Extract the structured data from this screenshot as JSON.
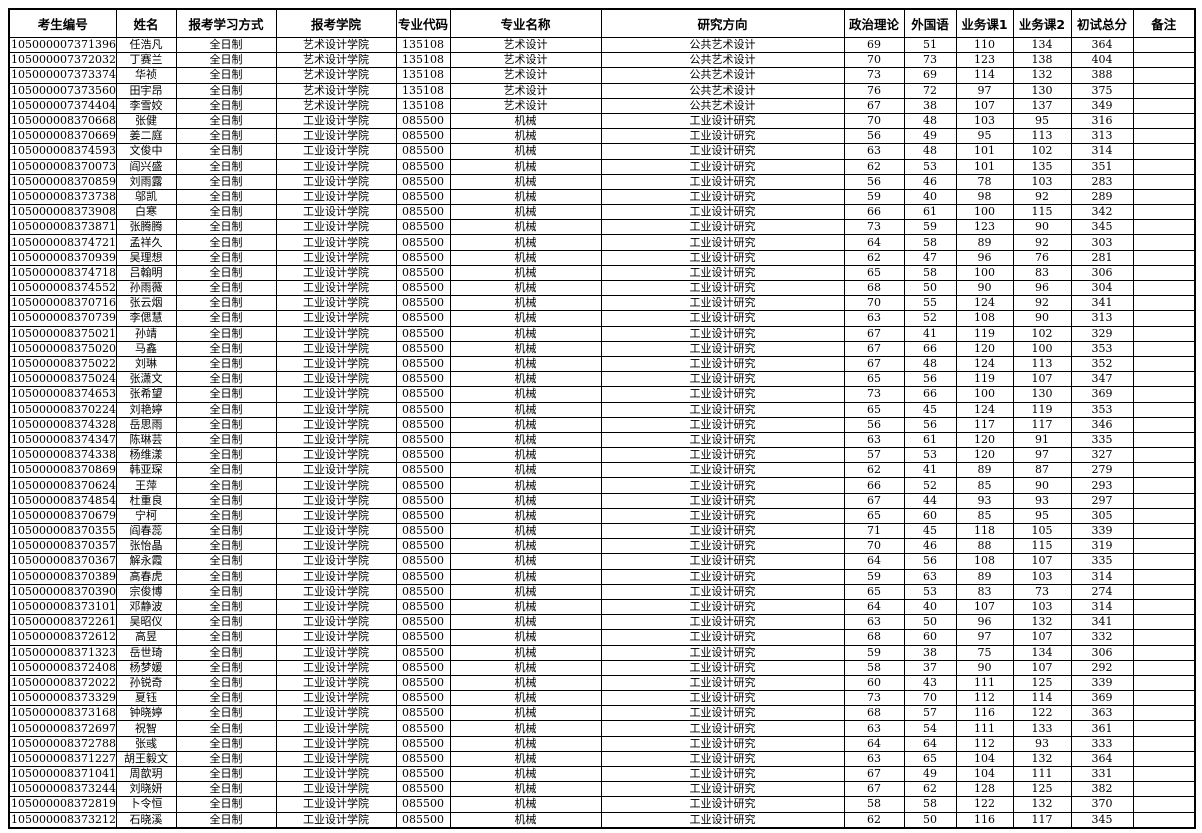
{
  "colors": {
    "border": "#000000",
    "text": "#000000",
    "background": "#ffffff"
  },
  "table": {
    "headers": [
      "考生编号",
      "姓名",
      "报考学习方式",
      "报考学院",
      "专业代码",
      "专业名称",
      "研究方向",
      "政治理论",
      "外国语",
      "业务课1",
      "业务课2",
      "初试总分",
      "备注"
    ],
    "rows": [
      [
        "105000007371396",
        "任浩凡",
        "全日制",
        "艺术设计学院",
        "135108",
        "艺术设计",
        "公共艺术设计",
        69,
        51,
        110,
        134,
        364,
        ""
      ],
      [
        "105000007372032",
        "丁赛兰",
        "全日制",
        "艺术设计学院",
        "135108",
        "艺术设计",
        "公共艺术设计",
        70,
        73,
        123,
        138,
        404,
        ""
      ],
      [
        "105000007373374",
        "华祯",
        "全日制",
        "艺术设计学院",
        "135108",
        "艺术设计",
        "公共艺术设计",
        73,
        69,
        114,
        132,
        388,
        ""
      ],
      [
        "105000007373560",
        "田宇昂",
        "全日制",
        "艺术设计学院",
        "135108",
        "艺术设计",
        "公共艺术设计",
        76,
        72,
        97,
        130,
        375,
        ""
      ],
      [
        "105000007374404",
        "李雪姣",
        "全日制",
        "艺术设计学院",
        "135108",
        "艺术设计",
        "公共艺术设计",
        67,
        38,
        107,
        137,
        349,
        ""
      ],
      [
        "105000008370668",
        "张健",
        "全日制",
        "工业设计学院",
        "085500",
        "机械",
        "工业设计研究",
        70,
        48,
        103,
        95,
        316,
        ""
      ],
      [
        "105000008370669",
        "姜二庭",
        "全日制",
        "工业设计学院",
        "085500",
        "机械",
        "工业设计研究",
        56,
        49,
        95,
        113,
        313,
        ""
      ],
      [
        "105000008374593",
        "文俊中",
        "全日制",
        "工业设计学院",
        "085500",
        "机械",
        "工业设计研究",
        63,
        48,
        101,
        102,
        314,
        ""
      ],
      [
        "105000008370073",
        "阎兴盛",
        "全日制",
        "工业设计学院",
        "085500",
        "机械",
        "工业设计研究",
        62,
        53,
        101,
        135,
        351,
        ""
      ],
      [
        "105000008370859",
        "刘雨露",
        "全日制",
        "工业设计学院",
        "085500",
        "机械",
        "工业设计研究",
        56,
        46,
        78,
        103,
        283,
        ""
      ],
      [
        "105000008373738",
        "邬凯",
        "全日制",
        "工业设计学院",
        "085500",
        "机械",
        "工业设计研究",
        59,
        40,
        98,
        92,
        289,
        ""
      ],
      [
        "105000008373908",
        "白寒",
        "全日制",
        "工业设计学院",
        "085500",
        "机械",
        "工业设计研究",
        66,
        61,
        100,
        115,
        342,
        ""
      ],
      [
        "105000008373871",
        "张腾腾",
        "全日制",
        "工业设计学院",
        "085500",
        "机械",
        "工业设计研究",
        73,
        59,
        123,
        90,
        345,
        ""
      ],
      [
        "105000008374721",
        "孟祥久",
        "全日制",
        "工业设计学院",
        "085500",
        "机械",
        "工业设计研究",
        64,
        58,
        89,
        92,
        303,
        ""
      ],
      [
        "105000008370939",
        "吴理想",
        "全日制",
        "工业设计学院",
        "085500",
        "机械",
        "工业设计研究",
        62,
        47,
        96,
        76,
        281,
        ""
      ],
      [
        "105000008374718",
        "吕翰明",
        "全日制",
        "工业设计学院",
        "085500",
        "机械",
        "工业设计研究",
        65,
        58,
        100,
        83,
        306,
        ""
      ],
      [
        "105000008374552",
        "孙雨薇",
        "全日制",
        "工业设计学院",
        "085500",
        "机械",
        "工业设计研究",
        68,
        50,
        90,
        96,
        304,
        ""
      ],
      [
        "105000008370716",
        "张云烟",
        "全日制",
        "工业设计学院",
        "085500",
        "机械",
        "工业设计研究",
        70,
        55,
        124,
        92,
        341,
        ""
      ],
      [
        "105000008370739",
        "李偲慧",
        "全日制",
        "工业设计学院",
        "085500",
        "机械",
        "工业设计研究",
        63,
        52,
        108,
        90,
        313,
        ""
      ],
      [
        "105000008375021",
        "孙靖",
        "全日制",
        "工业设计学院",
        "085500",
        "机械",
        "工业设计研究",
        67,
        41,
        119,
        102,
        329,
        ""
      ],
      [
        "105000008375020",
        "马鑫",
        "全日制",
        "工业设计学院",
        "085500",
        "机械",
        "工业设计研究",
        67,
        66,
        120,
        100,
        353,
        ""
      ],
      [
        "105000008375022",
        "刘琳",
        "全日制",
        "工业设计学院",
        "085500",
        "机械",
        "工业设计研究",
        67,
        48,
        124,
        113,
        352,
        ""
      ],
      [
        "105000008375024",
        "张潇文",
        "全日制",
        "工业设计学院",
        "085500",
        "机械",
        "工业设计研究",
        65,
        56,
        119,
        107,
        347,
        ""
      ],
      [
        "105000008374653",
        "张希望",
        "全日制",
        "工业设计学院",
        "085500",
        "机械",
        "工业设计研究",
        73,
        66,
        100,
        130,
        369,
        ""
      ],
      [
        "105000008370224",
        "刘艳婷",
        "全日制",
        "工业设计学院",
        "085500",
        "机械",
        "工业设计研究",
        65,
        45,
        124,
        119,
        353,
        ""
      ],
      [
        "105000008374328",
        "岳思雨",
        "全日制",
        "工业设计学院",
        "085500",
        "机械",
        "工业设计研究",
        56,
        56,
        117,
        117,
        346,
        ""
      ],
      [
        "105000008374347",
        "陈琳芸",
        "全日制",
        "工业设计学院",
        "085500",
        "机械",
        "工业设计研究",
        63,
        61,
        120,
        91,
        335,
        ""
      ],
      [
        "105000008374338",
        "杨维漾",
        "全日制",
        "工业设计学院",
        "085500",
        "机械",
        "工业设计研究",
        57,
        53,
        120,
        97,
        327,
        ""
      ],
      [
        "105000008370869",
        "韩亚琛",
        "全日制",
        "工业设计学院",
        "085500",
        "机械",
        "工业设计研究",
        62,
        41,
        89,
        87,
        279,
        ""
      ],
      [
        "105000008370624",
        "王萍",
        "全日制",
        "工业设计学院",
        "085500",
        "机械",
        "工业设计研究",
        66,
        52,
        85,
        90,
        293,
        ""
      ],
      [
        "105000008374854",
        "杜重良",
        "全日制",
        "工业设计学院",
        "085500",
        "机械",
        "工业设计研究",
        67,
        44,
        93,
        93,
        297,
        ""
      ],
      [
        "105000008370679",
        "宁柯",
        "全日制",
        "工业设计学院",
        "085500",
        "机械",
        "工业设计研究",
        65,
        60,
        85,
        95,
        305,
        ""
      ],
      [
        "105000008370355",
        "阎春蕊",
        "全日制",
        "工业设计学院",
        "085500",
        "机械",
        "工业设计研究",
        71,
        45,
        118,
        105,
        339,
        ""
      ],
      [
        "105000008370357",
        "张怡晶",
        "全日制",
        "工业设计学院",
        "085500",
        "机械",
        "工业设计研究",
        70,
        46,
        88,
        115,
        319,
        ""
      ],
      [
        "105000008370367",
        "解永霞",
        "全日制",
        "工业设计学院",
        "085500",
        "机械",
        "工业设计研究",
        64,
        56,
        108,
        107,
        335,
        ""
      ],
      [
        "105000008370389",
        "高春虎",
        "全日制",
        "工业设计学院",
        "085500",
        "机械",
        "工业设计研究",
        59,
        63,
        89,
        103,
        314,
        ""
      ],
      [
        "105000008370390",
        "宗俊博",
        "全日制",
        "工业设计学院",
        "085500",
        "机械",
        "工业设计研究",
        65,
        53,
        83,
        73,
        274,
        ""
      ],
      [
        "105000008373101",
        "邓静波",
        "全日制",
        "工业设计学院",
        "085500",
        "机械",
        "工业设计研究",
        64,
        40,
        107,
        103,
        314,
        ""
      ],
      [
        "105000008372261",
        "吴昭仪",
        "全日制",
        "工业设计学院",
        "085500",
        "机械",
        "工业设计研究",
        63,
        50,
        96,
        132,
        341,
        ""
      ],
      [
        "105000008372612",
        "高昱",
        "全日制",
        "工业设计学院",
        "085500",
        "机械",
        "工业设计研究",
        68,
        60,
        97,
        107,
        332,
        ""
      ],
      [
        "105000008371323",
        "岳世琦",
        "全日制",
        "工业设计学院",
        "085500",
        "机械",
        "工业设计研究",
        59,
        38,
        75,
        134,
        306,
        ""
      ],
      [
        "105000008372408",
        "杨梦媛",
        "全日制",
        "工业设计学院",
        "085500",
        "机械",
        "工业设计研究",
        58,
        37,
        90,
        107,
        292,
        ""
      ],
      [
        "105000008372022",
        "孙锐奇",
        "全日制",
        "工业设计学院",
        "085500",
        "机械",
        "工业设计研究",
        60,
        43,
        111,
        125,
        339,
        ""
      ],
      [
        "105000008373329",
        "夏钰",
        "全日制",
        "工业设计学院",
        "085500",
        "机械",
        "工业设计研究",
        73,
        70,
        112,
        114,
        369,
        ""
      ],
      [
        "105000008373168",
        "钟晓婷",
        "全日制",
        "工业设计学院",
        "085500",
        "机械",
        "工业设计研究",
        68,
        57,
        116,
        122,
        363,
        ""
      ],
      [
        "105000008372697",
        "祝智",
        "全日制",
        "工业设计学院",
        "085500",
        "机械",
        "工业设计研究",
        63,
        54,
        111,
        133,
        361,
        ""
      ],
      [
        "105000008372788",
        "张彧",
        "全日制",
        "工业设计学院",
        "085500",
        "机械",
        "工业设计研究",
        64,
        64,
        112,
        93,
        333,
        ""
      ],
      [
        "105000008371227",
        "胡王毅文",
        "全日制",
        "工业设计学院",
        "085500",
        "机械",
        "工业设计研究",
        63,
        65,
        104,
        132,
        364,
        ""
      ],
      [
        "105000008371041",
        "周歆玥",
        "全日制",
        "工业设计学院",
        "085500",
        "机械",
        "工业设计研究",
        67,
        49,
        104,
        111,
        331,
        ""
      ],
      [
        "105000008373244",
        "刘晓妍",
        "全日制",
        "工业设计学院",
        "085500",
        "机械",
        "工业设计研究",
        67,
        62,
        128,
        125,
        382,
        ""
      ],
      [
        "105000008372819",
        "卜令恒",
        "全日制",
        "工业设计学院",
        "085500",
        "机械",
        "工业设计研究",
        58,
        58,
        122,
        132,
        370,
        ""
      ],
      [
        "105000008373212",
        "石晓溪",
        "全日制",
        "工业设计学院",
        "085500",
        "机械",
        "工业设计研究",
        62,
        50,
        116,
        117,
        345,
        ""
      ]
    ]
  }
}
